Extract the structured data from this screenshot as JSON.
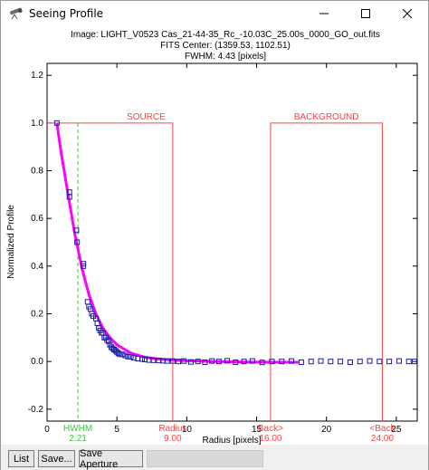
{
  "window": {
    "title": "Seeing Profile",
    "icons": {
      "app": "telescope-icon",
      "minimize": "minimize-icon",
      "maximize": "maximize-icon",
      "close": "close-icon"
    }
  },
  "plot_header": {
    "line1": "Image: LIGHT_V0523 Cas_21-44-35_Rc_-10.03C_25.00s_0000_GO_out.fits",
    "line2": "FITS Center: (1359.53,  1102.51)",
    "line3": "FWHM: 4.43 [pixels]"
  },
  "chart_data": {
    "type": "scatter",
    "xlabel": "Radius [pixels]",
    "ylabel": "Normalized Profile",
    "xlim": [
      0,
      26.5
    ],
    "ylim": [
      -0.25,
      1.25
    ],
    "xticks": [
      "0",
      "5",
      "10",
      "15",
      "20",
      "25"
    ],
    "xtick_values": [
      0,
      5,
      10,
      15,
      20,
      25
    ],
    "yticks": [
      "-0.2",
      "0.0",
      "0.2",
      "0.4",
      "0.6",
      "0.8",
      "1.0",
      "1.2"
    ],
    "ytick_values": [
      -0.2,
      0.0,
      0.2,
      0.4,
      0.6,
      0.8,
      1.0,
      1.2
    ],
    "grid": false,
    "colors": {
      "points": "#1a1aa6",
      "fit": "#ff00ff",
      "aperture": "#ff4040",
      "hwhm": "#33cc33"
    },
    "fit_curve": {
      "x": [
        0.7,
        1,
        1.5,
        2,
        2.5,
        3,
        3.5,
        4,
        4.5,
        5,
        6,
        7,
        8,
        9,
        10,
        12,
        14,
        16,
        18
      ],
      "y": [
        1.0,
        0.88,
        0.7,
        0.53,
        0.39,
        0.28,
        0.2,
        0.14,
        0.1,
        0.07,
        0.035,
        0.018,
        0.01,
        0.006,
        0.003,
        0.0,
        -0.002,
        -0.003,
        -0.003
      ]
    },
    "points": {
      "x": [
        0.7,
        1.6,
        1.6,
        2.1,
        2.15,
        2.6,
        2.6,
        2.9,
        3.0,
        3.1,
        3.2,
        3.3,
        3.5,
        3.6,
        3.7,
        3.8,
        3.9,
        4.0,
        4.1,
        4.2,
        4.3,
        4.4,
        4.5,
        4.6,
        4.7,
        4.8,
        4.9,
        5.0,
        5.1,
        5.2,
        5.4,
        5.6,
        5.8,
        6.0,
        6.2,
        6.5,
        6.8,
        7.0,
        7.3,
        7.6,
        8.0,
        8.3,
        8.6,
        9.0,
        9.4,
        9.8,
        10.3,
        10.8,
        11.3,
        11.8,
        12.3,
        12.9,
        13.5,
        14.1,
        14.7,
        15.4,
        16.1,
        16.8,
        17.5,
        18.2,
        18.9,
        19.6,
        20.3,
        21.0,
        21.7,
        22.4,
        23.1,
        23.8,
        24.5,
        25.2,
        25.9,
        26.3
      ],
      "y": [
        1.0,
        0.71,
        0.69,
        0.55,
        0.5,
        0.41,
        0.4,
        0.25,
        0.23,
        0.22,
        0.2,
        0.19,
        0.18,
        0.16,
        0.14,
        0.13,
        0.12,
        0.12,
        0.1,
        0.1,
        0.09,
        0.085,
        0.07,
        0.06,
        0.055,
        0.05,
        0.045,
        0.04,
        0.035,
        0.03,
        0.03,
        0.025,
        0.02,
        0.02,
        0.015,
        0.012,
        0.01,
        0.008,
        0.006,
        0.005,
        0.004,
        0.003,
        0.002,
        0.002,
        0.0,
        0.002,
        -0.002,
        0.0,
        -0.003,
        0.002,
        0.0,
        0.003,
        -0.003,
        0.0,
        0.002,
        -0.004,
        0.0,
        0.0,
        0.002,
        -0.003,
        0.0,
        0.002,
        0.0,
        0.0,
        -0.003,
        0.0,
        0.002,
        0.0,
        0.0,
        0.002,
        0.0,
        0.0
      ]
    },
    "apertures": {
      "source_label": "SOURCE",
      "source_x": [
        0,
        9.0
      ],
      "background_label": "BACKGROUND",
      "background_x": [
        16.0,
        24.0
      ],
      "level": 1.0
    },
    "markers": [
      {
        "name": "HWHM",
        "value": "2.21",
        "x": 2.21,
        "color": "#33cc33"
      },
      {
        "name": "Radius",
        "value": "9.00",
        "x": 9.0,
        "color": "#ff4040"
      },
      {
        "name": "Back>",
        "value": "16.00",
        "x": 16.0,
        "color": "#ff4040"
      },
      {
        "name": "<Back",
        "value": "24.00",
        "x": 24.0,
        "color": "#ff4040"
      }
    ]
  },
  "buttons": {
    "list": "List",
    "save": "Save...",
    "save_aperture": "Save Aperture"
  }
}
